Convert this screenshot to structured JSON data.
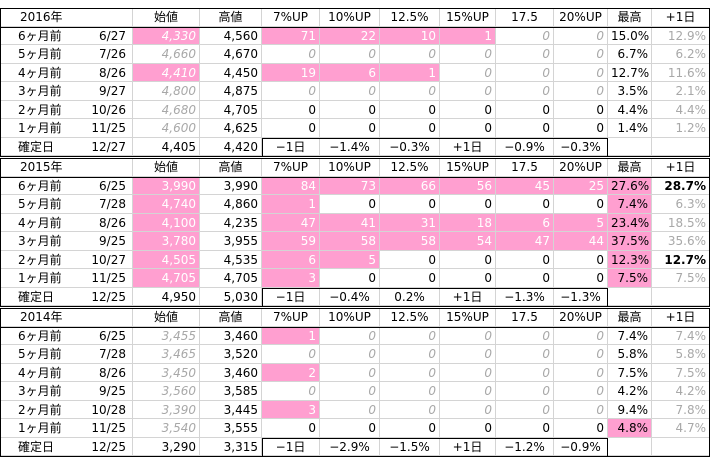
{
  "tables": [
    {
      "header": [
        "2016年",
        "始値",
        "高値",
        "7%UP",
        "10%UP",
        "12.5%",
        "15%UP",
        "17.5",
        "20%UP",
        "最高",
        "+1日"
      ],
      "rows": [
        [
          "6ヶ月前",
          "6/27",
          "4,330",
          "4,560",
          "71",
          "22",
          "10",
          "1",
          "0",
          "0",
          "15.0%",
          "12.9%"
        ],
        [
          "5ヶ月前",
          "7/26",
          "4,660",
          "4,670",
          "0",
          "0",
          "0",
          "0",
          "0",
          "0",
          "6.7%",
          "6.2%"
        ],
        [
          "4ヶ月前",
          "8/26",
          "4,410",
          "4,450",
          "19",
          "6",
          "1",
          "0",
          "0",
          "0",
          "12.7%",
          "11.6%"
        ],
        [
          "3ヶ月前",
          "9/27",
          "4,800",
          "4,875",
          "0",
          "0",
          "0",
          "0",
          "0",
          "0",
          "3.5%",
          "2.1%"
        ],
        [
          "2ヶ月前",
          "10/26",
          "4,680",
          "4,705",
          "0",
          "0",
          "0",
          "0",
          "0",
          "0",
          "4.4%",
          "4.4%"
        ],
        [
          "1ヶ月前",
          "11/25",
          "4,600",
          "4,625",
          "0",
          "0",
          "0",
          "0",
          "0",
          "0",
          "1.4%",
          "1.2%"
        ],
        [
          "確定日",
          "12/27",
          "4,405",
          "4,420",
          "−1日",
          "−1.4%",
          "−0.3%",
          "+1日",
          "−0.9%",
          "−0.3%"
        ]
      ]
    },
    {
      "header": [
        "2015年",
        "始値",
        "高値",
        "7%UP",
        "10%UP",
        "12.5%",
        "15%UP",
        "17.5",
        "20%UP",
        "最高",
        "+1日"
      ],
      "rows": [
        [
          "6ヶ月前",
          "6/25",
          "3,990",
          "3,990",
          "84",
          "73",
          "66",
          "56",
          "45",
          "25",
          "27.6%",
          "28.7%"
        ],
        [
          "5ヶ月前",
          "7/28",
          "4,740",
          "4,860",
          "1",
          "0",
          "0",
          "0",
          "0",
          "0",
          "7.4%",
          "6.3%"
        ],
        [
          "4ヶ月前",
          "8/26",
          "4,100",
          "4,235",
          "47",
          "41",
          "31",
          "18",
          "6",
          "5",
          "23.4%",
          "18.5%"
        ],
        [
          "3ヶ月前",
          "9/25",
          "3,780",
          "3,955",
          "59",
          "58",
          "58",
          "54",
          "47",
          "44",
          "37.5%",
          "35.6%"
        ],
        [
          "2ヶ月前",
          "10/27",
          "4,505",
          "4,535",
          "6",
          "5",
          "0",
          "0",
          "0",
          "0",
          "12.3%",
          "12.7%"
        ],
        [
          "1ヶ月前",
          "11/25",
          "4,705",
          "4,705",
          "3",
          "0",
          "0",
          "0",
          "0",
          "0",
          "7.5%",
          "7.5%"
        ],
        [
          "確定日",
          "12/25",
          "4,950",
          "5,030",
          "−1日",
          "−0.4%",
          "0.2%",
          "+1日",
          "−1.3%",
          "−1.3%"
        ]
      ]
    },
    {
      "header": [
        "2014年",
        "始値",
        "高値",
        "7%UP",
        "10%UP",
        "12.5%",
        "15%UP",
        "17.5",
        "20%UP",
        "最高",
        "+1日"
      ],
      "rows": [
        [
          "6ヶ月前",
          "6/25",
          "3,455",
          "3,460",
          "1",
          "0",
          "0",
          "0",
          "0",
          "0",
          "7.4%",
          "7.4%"
        ],
        [
          "5ヶ月前",
          "7/28",
          "3,465",
          "3,520",
          "0",
          "0",
          "0",
          "0",
          "0",
          "0",
          "5.8%",
          "5.8%"
        ],
        [
          "4ヶ月前",
          "8/26",
          "3,450",
          "3,460",
          "2",
          "0",
          "0",
          "0",
          "0",
          "0",
          "7.5%",
          "7.5%"
        ],
        [
          "3ヶ月前",
          "9/25",
          "3,560",
          "3,585",
          "0",
          "0",
          "0",
          "0",
          "0",
          "0",
          "4.2%",
          "4.2%"
        ],
        [
          "2ヶ月前",
          "10/28",
          "3,390",
          "3,445",
          "3",
          "0",
          "0",
          "0",
          "0",
          "0",
          "9.4%",
          "7.8%"
        ],
        [
          "1ヶ月前",
          "11/25",
          "3,540",
          "3,555",
          "0",
          "0",
          "0",
          "0",
          "0",
          "0",
          "4.8%",
          "4.7%"
        ],
        [
          "確定日",
          "12/25",
          "3,290",
          "3,315",
          "−1日",
          "−2.9%",
          "−1.5%",
          "+1日",
          "−1.2%",
          "−0.9%"
        ]
      ]
    }
  ]
}
